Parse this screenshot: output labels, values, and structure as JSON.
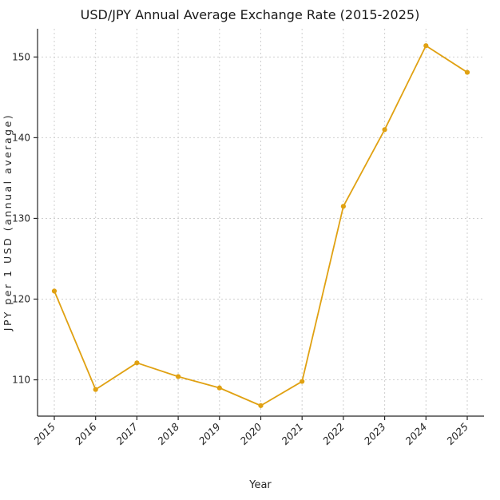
{
  "chart_data": {
    "type": "line",
    "title": "USD/JPY Annual Average Exchange Rate (2015-2025)",
    "xlabel": "Year",
    "ylabel": "JPY per 1 USD (annual average)",
    "categories": [
      "2015",
      "2016",
      "2017",
      "2018",
      "2019",
      "2020",
      "2021",
      "2022",
      "2023",
      "2024",
      "2025"
    ],
    "values": [
      121.0,
      108.8,
      112.1,
      110.4,
      109.0,
      106.8,
      109.8,
      131.5,
      141.0,
      151.4,
      148.1
    ],
    "yticks": [
      110,
      120,
      130,
      140,
      150
    ],
    "ylim": [
      105.5,
      153.5
    ],
    "grid": true,
    "grid_style": "dashed",
    "legend": "none",
    "line_color": "#E0A112",
    "marker": "circle",
    "grid_color": "#cfcfcf",
    "axis_color": "#262626",
    "background_color": "#ffffff"
  }
}
